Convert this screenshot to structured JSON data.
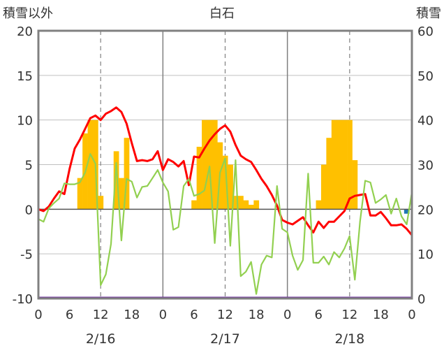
{
  "chart_data": {
    "type": "bar+line",
    "title": "白石",
    "left_axis": {
      "label": "積雪以外",
      "range": [
        -10,
        20
      ],
      "ticks": [
        "20",
        "15",
        "10",
        "5",
        "0",
        "-5",
        "-10"
      ]
    },
    "right_axis": {
      "label": "積雪",
      "range": [
        0,
        60
      ],
      "ticks": [
        "60",
        "50",
        "40",
        "30",
        "20",
        "10",
        "0"
      ]
    },
    "x_axis": {
      "range_hours": [
        0,
        72
      ],
      "hour_ticks": [
        "0",
        "6",
        "12",
        "18",
        "0",
        "6",
        "12",
        "18",
        "0",
        "6",
        "12",
        "18",
        "0"
      ],
      "day_labels": [
        "2/16",
        "2/17",
        "2/18"
      ]
    },
    "colors": {
      "temperature": "#ff0000",
      "dewpoint": "#92d050",
      "snow_depth": "#ffc000",
      "precip_marker": "#1f77b4",
      "zero_line": "#7030a0",
      "frame": "#808080"
    },
    "series": [
      {
        "kind": "line",
        "axis": "left",
        "color": "#ff0000",
        "x": [
          0,
          1,
          2,
          3,
          4,
          5,
          6,
          7,
          8,
          9,
          10,
          11,
          12,
          13,
          14,
          15,
          16,
          17,
          18,
          19,
          20,
          21,
          22,
          23,
          24,
          25,
          26,
          27,
          28,
          29,
          30,
          31,
          32,
          33,
          34,
          35,
          36,
          37,
          38,
          39,
          40,
          41,
          42,
          43,
          44,
          45,
          46,
          47,
          48,
          49,
          50,
          51,
          52,
          53,
          54,
          55,
          56,
          57,
          58,
          59,
          60,
          61,
          62,
          63,
          64,
          65,
          66,
          67,
          68,
          69,
          70,
          71,
          72
        ],
        "y": [
          0,
          -0.2,
          0.3,
          1.2,
          2,
          1.7,
          4.5,
          6.8,
          7.8,
          9,
          10.2,
          10.5,
          10,
          10.7,
          11,
          11.4,
          10.9,
          9.6,
          7.4,
          5.4,
          5.5,
          5.4,
          5.6,
          6.5,
          4.4,
          5.6,
          5.3,
          4.8,
          5.4,
          2.7,
          5.9,
          5.8,
          6.8,
          7.7,
          8.4,
          9,
          9.4,
          8.7,
          7.2,
          6,
          5.6,
          5.3,
          4.4,
          3.4,
          2.6,
          1.6,
          0.4,
          -1.2,
          -1.5,
          -1.7,
          -1.3,
          -0.9,
          -1.8,
          -2.6,
          -1.4,
          -2.1,
          -1.4,
          -1.4,
          -0.8,
          -0.2,
          1.2,
          1.5,
          1.6,
          1.7,
          -0.7,
          -0.7,
          -0.3,
          -1,
          -1.8,
          -1.8,
          -1.7,
          -2.2,
          -2.9
        ]
      },
      {
        "kind": "line",
        "axis": "left",
        "color": "#92d050",
        "x": [
          0,
          1,
          2,
          3,
          4,
          5,
          6,
          7,
          8,
          9,
          10,
          11,
          12,
          13,
          14,
          15,
          16,
          17,
          18,
          19,
          20,
          21,
          22,
          23,
          24,
          25,
          26,
          27,
          28,
          29,
          30,
          31,
          32,
          33,
          34,
          35,
          36,
          37,
          38,
          39,
          40,
          41,
          42,
          43,
          44,
          45,
          46,
          47,
          48,
          49,
          50,
          51,
          52,
          53,
          54,
          55,
          56,
          57,
          58,
          59,
          60,
          61,
          62,
          63,
          64,
          65,
          66,
          67,
          68,
          69,
          70,
          71,
          72
        ],
        "y": [
          -1.1,
          -1.4,
          0.1,
          0.7,
          1.2,
          2.9,
          2.8,
          2.8,
          3,
          4.1,
          6.2,
          5.1,
          -8.5,
          -7.3,
          -3.9,
          5.2,
          -3.5,
          3.4,
          3.1,
          1.3,
          2.5,
          2.6,
          3.5,
          4.4,
          3,
          2,
          -2.3,
          -2,
          2.6,
          3.4,
          1.5,
          1.7,
          2.1,
          4.8,
          -3.8,
          4.1,
          5.7,
          -4.1,
          5.5,
          -7.5,
          -7,
          -5.9,
          -9.5,
          -6.2,
          -5.2,
          -5.4,
          2.6,
          -2.2,
          -2.6,
          -5.2,
          -6.8,
          -5.7,
          4,
          -6,
          -6,
          -5.3,
          -6.2,
          -4.8,
          -5.4,
          -4.4,
          -3,
          -7.9,
          -1.4,
          3.2,
          3,
          0.7,
          1.1,
          1.6,
          -0.5,
          1.2,
          -0.8,
          -1.7,
          1.9
        ]
      },
      {
        "kind": "bar",
        "axis": "right",
        "color": "#ffc000",
        "x": [
          8,
          9,
          10,
          11,
          12,
          15,
          16,
          17,
          30,
          31,
          32,
          33,
          34,
          35,
          36,
          37,
          38,
          39,
          40,
          41,
          42,
          54,
          55,
          56,
          57,
          58,
          59,
          60,
          61
        ],
        "y": [
          27,
          37,
          40,
          40,
          23,
          33,
          27,
          36,
          22,
          34,
          40,
          40,
          40,
          35,
          32,
          30,
          23,
          23,
          22,
          21,
          22,
          22,
          30,
          36,
          40,
          40,
          40,
          40,
          31
        ]
      },
      {
        "kind": "bar",
        "axis": "left",
        "color": "#1f77b4",
        "x": [
          71
        ],
        "y": [
          -0.5
        ]
      }
    ]
  }
}
